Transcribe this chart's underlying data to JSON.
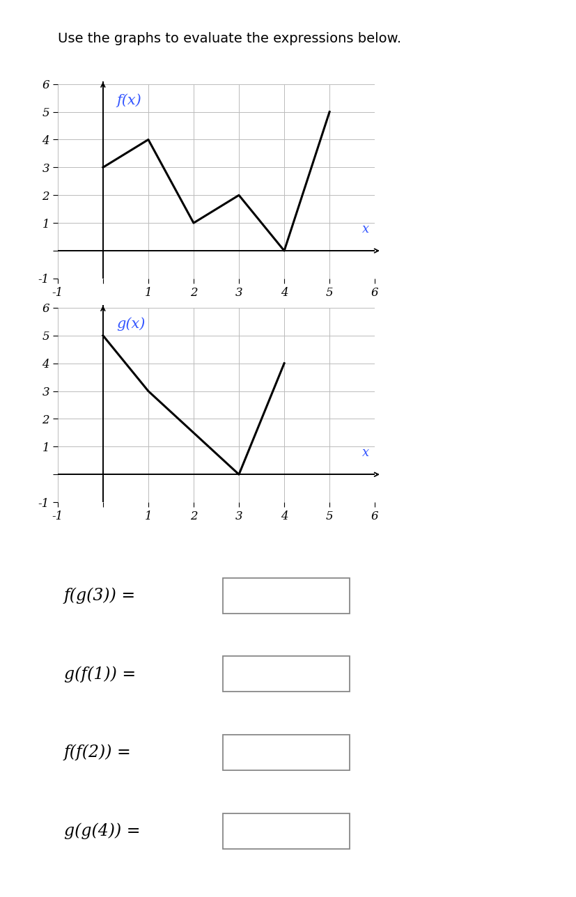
{
  "title": "Use the graphs to evaluate the expressions below.",
  "title_fontsize": 14,
  "fx_points": [
    [
      0,
      3
    ],
    [
      1,
      4
    ],
    [
      2,
      1
    ],
    [
      3,
      2
    ],
    [
      4,
      0
    ],
    [
      5,
      5
    ]
  ],
  "gx_points": [
    [
      0,
      5
    ],
    [
      1,
      3
    ],
    [
      3,
      0
    ],
    [
      4,
      4
    ]
  ],
  "fx_label": "f(x)",
  "gx_label": "g(x)",
  "x_label": "x",
  "xlim": [
    -1,
    6
  ],
  "ylim": [
    -1,
    6
  ],
  "line_color": "#000000",
  "label_color": "#3355ff",
  "grid_color": "#bbbbbb",
  "background_color": "#ffffff",
  "expressions": [
    "f(g(3)) =",
    "g(f(1)) =",
    "f(f(2)) =",
    "g(g(4)) ="
  ],
  "expr_fontsize": 17
}
